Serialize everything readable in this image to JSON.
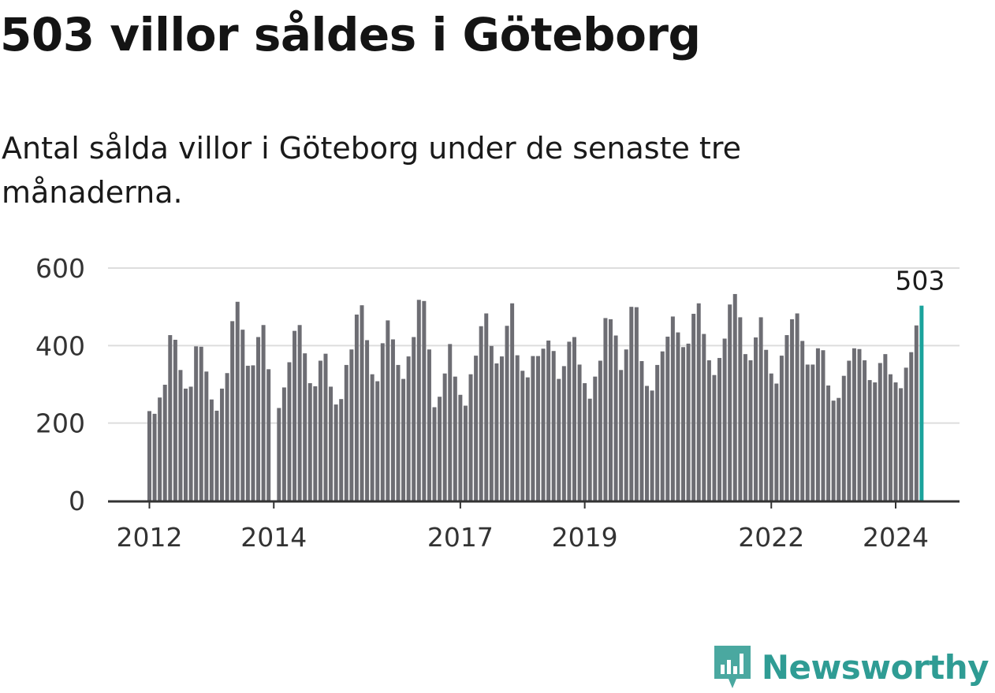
{
  "chart_data": {
    "type": "bar",
    "title": "503 villor såldes i Göteborg",
    "subtitle": "Antal sålda villor i Göteborg under de senaste tre månaderna.",
    "ylim": [
      0,
      600
    ],
    "yticks": [
      0,
      200,
      400,
      600
    ],
    "xtick_labels": [
      {
        "label": "2012",
        "index": 0
      },
      {
        "label": "2014",
        "index": 24
      },
      {
        "label": "2017",
        "index": 60
      },
      {
        "label": "2019",
        "index": 84
      },
      {
        "label": "2022",
        "index": 120
      },
      {
        "label": "2024",
        "index": 144
      }
    ],
    "highlight_label": "503",
    "values": [
      231,
      224,
      266,
      299,
      427,
      415,
      337,
      289,
      294,
      398,
      397,
      333,
      261,
      232,
      289,
      329,
      463,
      513,
      441,
      348,
      349,
      422,
      453,
      339,
      0,
      239,
      292,
      357,
      438,
      453,
      380,
      303,
      295,
      361,
      379,
      294,
      248,
      262,
      350,
      390,
      480,
      504,
      414,
      326,
      308,
      406,
      465,
      416,
      350,
      314,
      372,
      422,
      518,
      515,
      390,
      241,
      268,
      328,
      404,
      320,
      273,
      245,
      326,
      374,
      450,
      483,
      399,
      354,
      372,
      451,
      509,
      375,
      335,
      318,
      373,
      373,
      392,
      413,
      386,
      314,
      347,
      410,
      422,
      351,
      303,
      263,
      320,
      361,
      471,
      468,
      426,
      337,
      390,
      500,
      499,
      360,
      296,
      284,
      350,
      385,
      423,
      475,
      434,
      396,
      405,
      482,
      509,
      430,
      362,
      324,
      368,
      418,
      506,
      533,
      473,
      378,
      362,
      421,
      473,
      389,
      328,
      302,
      374,
      427,
      468,
      483,
      412,
      351,
      351,
      393,
      388,
      297,
      258,
      265,
      322,
      361,
      393,
      391,
      362,
      311,
      305,
      355,
      378,
      326,
      305,
      290,
      343,
      383,
      452,
      503
    ],
    "bar_color": "#6d6d73",
    "highlight_color": "#1ba39c",
    "grid_color": "#dddddd",
    "axis_color": "#333333"
  },
  "branding": {
    "name": "Newsworthy",
    "color": "#2f9c94"
  }
}
